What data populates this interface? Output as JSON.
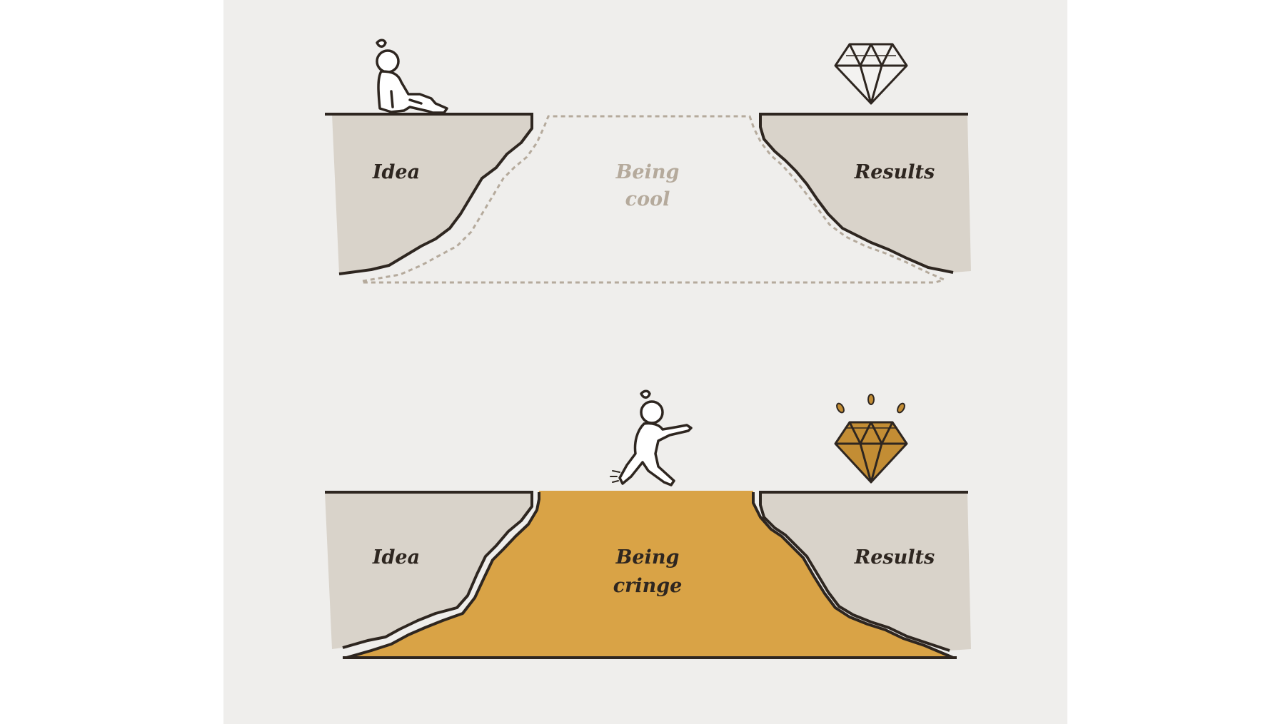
{
  "top_panel": {
    "left_label": "Idea",
    "middle_label_line1": "Being",
    "middle_label_line2": "cool",
    "right_label": "Results"
  },
  "bottom_panel": {
    "left_label": "Idea",
    "middle_label_line1": "Being",
    "middle_label_line2": "cringe",
    "right_label": "Results"
  },
  "colors": {
    "background": "#efeeec",
    "cliff_fill": "#d9d3ca",
    "bridge_fill": "#d9a346",
    "ink": "#2e2620",
    "dashed_outline": "#b5aa9c"
  },
  "icons": [
    "person-sitting-icon",
    "diamond-outline-icon",
    "person-walking-icon",
    "diamond-shining-icon"
  ]
}
